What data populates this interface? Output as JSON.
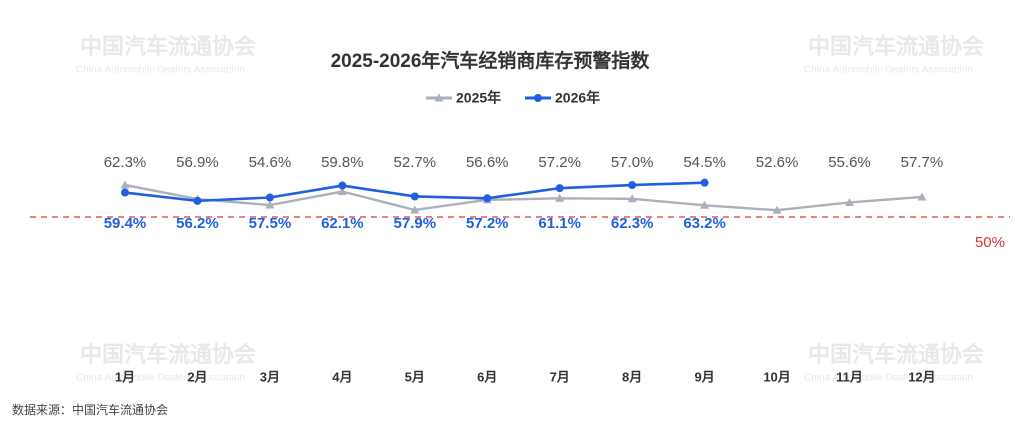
{
  "chart_data": {
    "type": "line",
    "title": "2025-2026年汽车经销商库存预警指数",
    "categories": [
      "1月",
      "2月",
      "3月",
      "4月",
      "5月",
      "6月",
      "7月",
      "8月",
      "9月",
      "10月",
      "11月",
      "12月"
    ],
    "series": [
      {
        "name": "2025年",
        "color": "#aab1ba",
        "marker": "triangle",
        "values": [
          62.3,
          56.9,
          54.6,
          59.8,
          52.7,
          56.6,
          57.2,
          57.0,
          54.5,
          52.6,
          55.6,
          57.7
        ],
        "value_labels": [
          "62.3%",
          "56.9%",
          "54.6%",
          "59.8%",
          "52.7%",
          "56.6%",
          "57.2%",
          "57.0%",
          "54.5%",
          "52.6%",
          "55.6%",
          "57.7%"
        ]
      },
      {
        "name": "2026年",
        "color": "#1f5fe0",
        "marker": "circle",
        "values": [
          59.4,
          56.2,
          57.5,
          62.1,
          57.9,
          57.2,
          61.1,
          62.3,
          63.2,
          null,
          null,
          null
        ],
        "value_labels": [
          "59.4%",
          "56.2%",
          "57.5%",
          "62.1%",
          "57.9%",
          "57.2%",
          "61.1%",
          "62.3%",
          "63.2%",
          null,
          null,
          null
        ]
      }
    ],
    "ylim": [
      0,
      80
    ],
    "reference_line": {
      "value": 50,
      "label": "50%",
      "color": "#d9343a"
    },
    "watermark": {
      "cn": "中国汽车流通协会",
      "en": "China Automobile Dealers Association"
    },
    "source": "数据来源：中国汽车流通协会"
  }
}
